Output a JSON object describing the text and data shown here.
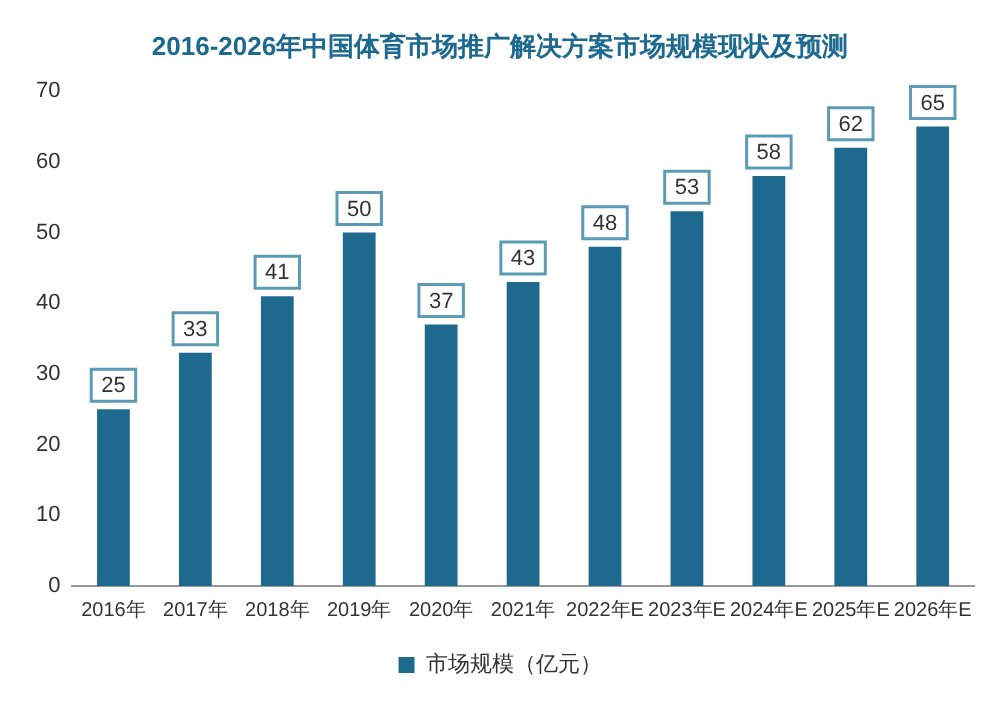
{
  "chart_data": {
    "type": "bar",
    "title": "2016-2026年中国体育市场推广解决方案市场规模现状及预测",
    "categories": [
      "2016年",
      "2017年",
      "2018年",
      "2019年",
      "2020年",
      "2021年",
      "2022年E",
      "2023年E",
      "2024年E",
      "2025年E",
      "2026年E"
    ],
    "series": [
      {
        "name": "市场规模（亿元）",
        "color": "#1d6a8e",
        "values": [
          25,
          33,
          41,
          50,
          37,
          43,
          48,
          53,
          58,
          62,
          65
        ]
      }
    ],
    "ylim": [
      0,
      70
    ],
    "yticks": [
      0,
      10,
      20,
      30,
      40,
      50,
      60,
      70
    ],
    "grid": false,
    "legend": "bottom",
    "data_labels": true
  }
}
